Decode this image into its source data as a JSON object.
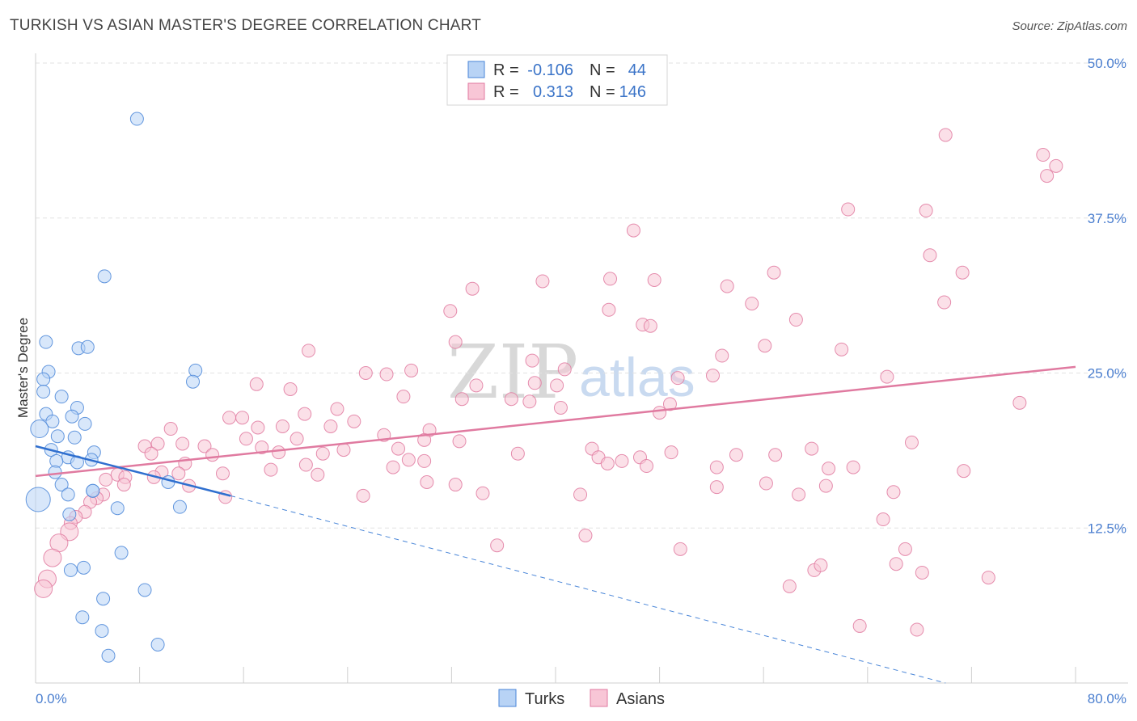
{
  "title": "TURKISH VS ASIAN MASTER'S DEGREE CORRELATION CHART",
  "source": "Source: ZipAtlas.com",
  "watermark": {
    "zip": "ZIP",
    "atlas": "atlas"
  },
  "legend": {
    "rows": [
      {
        "r_label": "R =",
        "r_value": "-0.106",
        "n_label": "N =",
        "n_value": "44",
        "fill": "#b8d3f5",
        "stroke": "#4a86d8"
      },
      {
        "r_label": "R =",
        "r_value": "0.313",
        "n_label": "N =",
        "n_value": "146",
        "fill": "#f8c6d6",
        "stroke": "#e07aa0"
      }
    ]
  },
  "bottom_legend": [
    {
      "label": "Turks",
      "fill": "#b8d3f5",
      "stroke": "#4a86d8"
    },
    {
      "label": "Asians",
      "fill": "#f8c6d6",
      "stroke": "#e07aa0"
    }
  ],
  "chart_data": {
    "type": "scatter",
    "ylabel": "Master's Degree",
    "xlim": [
      0,
      80
    ],
    "ylim": [
      0,
      50
    ],
    "x_tick_labels": [
      {
        "value": 0,
        "label": "0.0%"
      },
      {
        "value": 80,
        "label": "80.0%"
      }
    ],
    "y_tick_labels": [
      {
        "value": 12.5,
        "label": "12.5%"
      },
      {
        "value": 25,
        "label": "25.0%"
      },
      {
        "value": 37.5,
        "label": "37.5%"
      },
      {
        "value": 50,
        "label": "50.0%"
      }
    ],
    "grid": true,
    "series": [
      {
        "name": "Turks",
        "color": "#4a86d8",
        "fill": "#b8d3f5",
        "trend": {
          "x0": 0,
          "y0": 19.1,
          "x1": 15,
          "y1": 15.1,
          "dashed_to_x": 70,
          "dashed_to_y": 0
        },
        "points": [
          [
            7.8,
            45.5,
            1
          ],
          [
            5.3,
            32.8,
            1
          ],
          [
            0.8,
            27.5,
            1
          ],
          [
            3.3,
            27.0,
            1
          ],
          [
            4.0,
            27.1,
            1
          ],
          [
            1.0,
            25.1,
            1
          ],
          [
            0.6,
            24.5,
            1
          ],
          [
            12.3,
            25.2,
            1
          ],
          [
            12.1,
            24.3,
            1
          ],
          [
            0.6,
            23.5,
            1
          ],
          [
            2.0,
            23.1,
            1
          ],
          [
            3.2,
            22.2,
            1
          ],
          [
            0.8,
            21.7,
            1
          ],
          [
            2.8,
            21.5,
            1
          ],
          [
            1.3,
            21.1,
            1
          ],
          [
            3.8,
            20.9,
            1
          ],
          [
            0.3,
            20.5,
            2
          ],
          [
            1.7,
            19.9,
            1
          ],
          [
            3.0,
            19.8,
            1
          ],
          [
            1.2,
            18.8,
            1
          ],
          [
            4.5,
            18.6,
            1
          ],
          [
            2.5,
            18.2,
            1
          ],
          [
            4.3,
            18.0,
            1
          ],
          [
            1.6,
            17.9,
            1
          ],
          [
            3.2,
            17.8,
            1
          ],
          [
            1.5,
            17.0,
            1
          ],
          [
            2.0,
            16.0,
            1
          ],
          [
            10.2,
            16.2,
            1
          ],
          [
            4.4,
            15.5,
            1
          ],
          [
            2.5,
            15.2,
            1
          ],
          [
            0.2,
            14.8,
            3
          ],
          [
            6.3,
            14.1,
            1
          ],
          [
            11.1,
            14.2,
            1
          ],
          [
            2.6,
            13.6,
            1
          ],
          [
            6.6,
            10.5,
            1
          ],
          [
            2.7,
            9.1,
            1
          ],
          [
            3.7,
            9.3,
            1
          ],
          [
            8.4,
            7.5,
            1
          ],
          [
            5.2,
            6.8,
            1
          ],
          [
            3.6,
            5.3,
            1
          ],
          [
            5.1,
            4.2,
            1
          ],
          [
            9.4,
            3.1,
            1
          ],
          [
            5.6,
            2.2,
            1
          ],
          [
            4.4,
            15.5,
            1
          ]
        ]
      },
      {
        "name": "Asians",
        "color": "#e07aa0",
        "fill": "#f8c6d6",
        "trend": {
          "x0": 0,
          "y0": 16.7,
          "x1": 80,
          "y1": 25.5
        },
        "points": [
          [
            70.0,
            44.2,
            1
          ],
          [
            77.5,
            42.6,
            1
          ],
          [
            78.5,
            41.7,
            1
          ],
          [
            77.8,
            40.9,
            1
          ],
          [
            62.5,
            38.2,
            1
          ],
          [
            68.5,
            38.1,
            1
          ],
          [
            46.0,
            36.5,
            1
          ],
          [
            68.8,
            34.5,
            1
          ],
          [
            71.3,
            33.1,
            1
          ],
          [
            56.8,
            33.1,
            1
          ],
          [
            39.0,
            32.4,
            1
          ],
          [
            44.2,
            32.6,
            1
          ],
          [
            47.6,
            32.5,
            1
          ],
          [
            53.2,
            32.0,
            1
          ],
          [
            33.6,
            31.8,
            1
          ],
          [
            55.1,
            30.6,
            1
          ],
          [
            69.9,
            30.7,
            1
          ],
          [
            44.1,
            30.1,
            1
          ],
          [
            31.9,
            30.0,
            1
          ],
          [
            58.5,
            29.3,
            1
          ],
          [
            46.7,
            28.9,
            1
          ],
          [
            47.3,
            28.8,
            1
          ],
          [
            32.3,
            27.5,
            1
          ],
          [
            56.1,
            27.2,
            1
          ],
          [
            62.0,
            26.9,
            1
          ],
          [
            21.0,
            26.8,
            1
          ],
          [
            52.8,
            26.4,
            1
          ],
          [
            38.2,
            26.0,
            1
          ],
          [
            28.9,
            25.2,
            1
          ],
          [
            40.7,
            25.3,
            1
          ],
          [
            25.4,
            25.0,
            1
          ],
          [
            27.0,
            24.9,
            1
          ],
          [
            52.1,
            24.8,
            1
          ],
          [
            65.5,
            24.7,
            1
          ],
          [
            49.4,
            24.6,
            1
          ],
          [
            17.0,
            24.1,
            1
          ],
          [
            33.9,
            24.0,
            1
          ],
          [
            38.4,
            24.2,
            1
          ],
          [
            40.1,
            24.0,
            1
          ],
          [
            19.6,
            23.7,
            1
          ],
          [
            28.3,
            23.1,
            1
          ],
          [
            32.8,
            22.9,
            1
          ],
          [
            36.6,
            22.9,
            1
          ],
          [
            38.0,
            22.7,
            1
          ],
          [
            48.8,
            22.5,
            1
          ],
          [
            75.7,
            22.6,
            1
          ],
          [
            40.4,
            22.2,
            1
          ],
          [
            23.2,
            22.1,
            1
          ],
          [
            20.7,
            21.7,
            1
          ],
          [
            14.9,
            21.4,
            1
          ],
          [
            15.9,
            21.4,
            1
          ],
          [
            48.0,
            21.8,
            1
          ],
          [
            24.5,
            21.1,
            1
          ],
          [
            17.1,
            20.6,
            1
          ],
          [
            19.0,
            20.7,
            1
          ],
          [
            22.7,
            20.7,
            1
          ],
          [
            10.4,
            20.5,
            1
          ],
          [
            30.3,
            20.4,
            1
          ],
          [
            26.8,
            20.0,
            1
          ],
          [
            16.2,
            19.7,
            1
          ],
          [
            20.1,
            19.7,
            1
          ],
          [
            29.9,
            19.6,
            1
          ],
          [
            32.6,
            19.5,
            1
          ],
          [
            9.4,
            19.3,
            1
          ],
          [
            11.3,
            19.3,
            1
          ],
          [
            8.4,
            19.1,
            1
          ],
          [
            13.0,
            19.1,
            1
          ],
          [
            17.4,
            19.0,
            1
          ],
          [
            27.9,
            18.9,
            1
          ],
          [
            42.8,
            18.9,
            1
          ],
          [
            59.7,
            18.9,
            1
          ],
          [
            67.4,
            19.4,
            1
          ],
          [
            8.9,
            18.5,
            1
          ],
          [
            23.7,
            18.8,
            1
          ],
          [
            13.6,
            18.4,
            1
          ],
          [
            18.7,
            18.6,
            1
          ],
          [
            22.1,
            18.5,
            1
          ],
          [
            37.1,
            18.5,
            1
          ],
          [
            43.3,
            18.2,
            1
          ],
          [
            46.5,
            18.2,
            1
          ],
          [
            48.9,
            18.6,
            1
          ],
          [
            53.9,
            18.4,
            1
          ],
          [
            56.9,
            18.4,
            1
          ],
          [
            11.5,
            17.7,
            1
          ],
          [
            28.7,
            18.0,
            1
          ],
          [
            29.9,
            17.9,
            1
          ],
          [
            45.1,
            17.9,
            1
          ],
          [
            44.0,
            17.7,
            1
          ],
          [
            47.0,
            17.5,
            1
          ],
          [
            52.4,
            17.4,
            1
          ],
          [
            20.8,
            17.6,
            1
          ],
          [
            27.5,
            17.4,
            1
          ],
          [
            18.1,
            17.2,
            1
          ],
          [
            61.0,
            17.3,
            1
          ],
          [
            62.9,
            17.4,
            1
          ],
          [
            71.4,
            17.1,
            1
          ],
          [
            9.7,
            17.0,
            1
          ],
          [
            11.0,
            16.9,
            1
          ],
          [
            14.4,
            16.9,
            1
          ],
          [
            6.3,
            16.8,
            1
          ],
          [
            6.9,
            16.6,
            1
          ],
          [
            21.7,
            16.8,
            1
          ],
          [
            5.4,
            16.4,
            1
          ],
          [
            9.1,
            16.6,
            1
          ],
          [
            11.8,
            15.9,
            1
          ],
          [
            6.8,
            16.0,
            1
          ],
          [
            30.1,
            16.2,
            1
          ],
          [
            32.3,
            16.0,
            1
          ],
          [
            52.4,
            15.8,
            1
          ],
          [
            56.2,
            16.1,
            1
          ],
          [
            60.8,
            15.9,
            1
          ],
          [
            14.6,
            15.0,
            1
          ],
          [
            5.2,
            15.2,
            1
          ],
          [
            4.7,
            14.9,
            1
          ],
          [
            4.2,
            14.6,
            1
          ],
          [
            25.2,
            15.1,
            1
          ],
          [
            34.4,
            15.3,
            1
          ],
          [
            41.9,
            15.2,
            1
          ],
          [
            66.0,
            15.4,
            1
          ],
          [
            58.7,
            15.2,
            1
          ],
          [
            3.8,
            13.8,
            1
          ],
          [
            3.1,
            13.4,
            1
          ],
          [
            2.7,
            12.9,
            1
          ],
          [
            2.6,
            12.2,
            2
          ],
          [
            1.8,
            11.3,
            2
          ],
          [
            65.2,
            13.2,
            1
          ],
          [
            42.3,
            11.9,
            1
          ],
          [
            35.5,
            11.1,
            1
          ],
          [
            49.6,
            10.8,
            1
          ],
          [
            66.9,
            10.8,
            1
          ],
          [
            1.3,
            10.1,
            2
          ],
          [
            0.9,
            8.4,
            2
          ],
          [
            0.6,
            7.6,
            2
          ],
          [
            59.9,
            9.1,
            1
          ],
          [
            60.4,
            9.5,
            1
          ],
          [
            66.2,
            9.6,
            1
          ],
          [
            68.2,
            8.9,
            1
          ],
          [
            73.3,
            8.5,
            1
          ],
          [
            58.0,
            7.8,
            1
          ],
          [
            63.4,
            4.6,
            1
          ],
          [
            67.8,
            4.3,
            1
          ]
        ]
      }
    ]
  }
}
